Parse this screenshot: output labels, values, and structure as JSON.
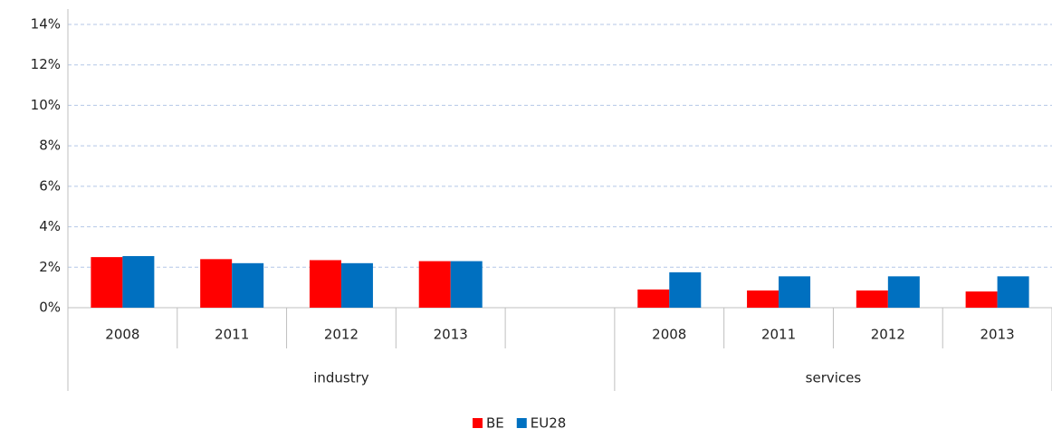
{
  "chart_data": {
    "type": "bar",
    "categories": [
      "2008",
      "2011",
      "2012",
      "2013",
      null,
      "2008",
      "2011",
      "2012",
      "2013"
    ],
    "groups": [
      "industry",
      "services"
    ],
    "series": [
      {
        "name": "BE",
        "color": "#ff0000",
        "values": [
          2.5,
          2.4,
          2.35,
          2.3,
          null,
          0.9,
          0.85,
          0.85,
          0.8
        ]
      },
      {
        "name": "EU28",
        "color": "#0070c0",
        "values": [
          2.55,
          2.2,
          2.2,
          2.3,
          null,
          1.75,
          1.55,
          1.55,
          1.55
        ]
      }
    ],
    "ylim": [
      0,
      14
    ],
    "yticks": [
      {
        "value": 0,
        "label": "0%"
      },
      {
        "value": 2,
        "label": "2%"
      },
      {
        "value": 4,
        "label": "4%"
      },
      {
        "value": 6,
        "label": "6%"
      },
      {
        "value": 8,
        "label": "8%"
      },
      {
        "value": 10,
        "label": "10%"
      },
      {
        "value": 12,
        "label": "12%"
      },
      {
        "value": 14,
        "label": "14%"
      }
    ],
    "grid": true,
    "legend": "bottom"
  }
}
